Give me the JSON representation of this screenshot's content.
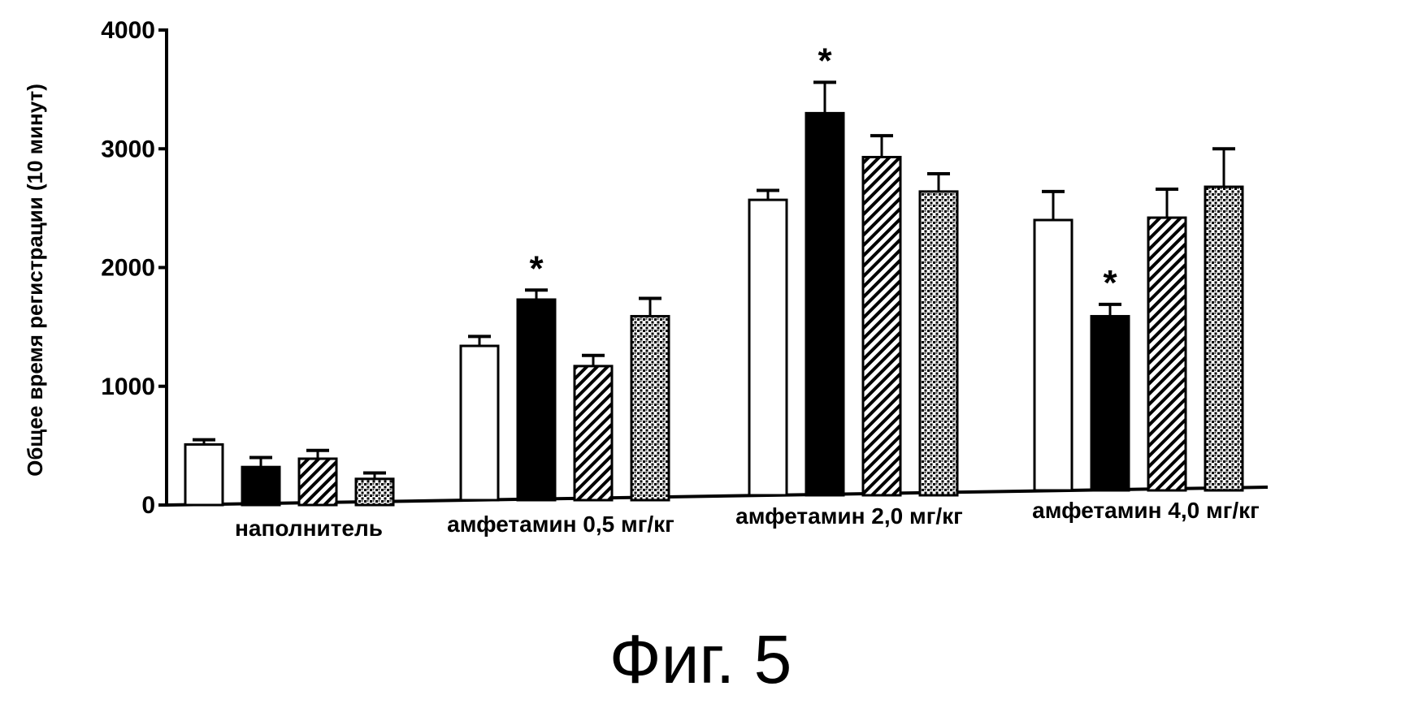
{
  "figure_caption": "Фиг. 5",
  "chart_data": {
    "type": "bar",
    "ylabel": "Общее время регистрации (10 минут)",
    "xlabel": "",
    "ylim": [
      0,
      4000
    ],
    "yticks": [
      "0",
      "1000",
      "2000",
      "3000",
      "4000"
    ],
    "ytick_values": [
      0,
      1000,
      2000,
      3000,
      4000
    ],
    "categories": [
      "наполнитель",
      "амфетамин 0,5 мг/кг",
      "амфетамин 2,0 мг/кг",
      "амфетамин 4,0 мг/кг"
    ],
    "legend": "none",
    "grid": false,
    "series": [
      {
        "fill": "white",
        "values": [
          510,
          1340,
          2570,
          2400
        ],
        "errors": [
          40,
          80,
          80,
          240
        ],
        "significant": [
          false,
          false,
          false,
          false
        ]
      },
      {
        "fill": "black",
        "values": [
          320,
          1730,
          3300,
          1590
        ],
        "errors": [
          80,
          80,
          260,
          100
        ],
        "significant": [
          false,
          true,
          true,
          true
        ]
      },
      {
        "fill": "diagonal",
        "values": [
          390,
          1170,
          2930,
          2420
        ],
        "errors": [
          70,
          90,
          180,
          240
        ],
        "significant": [
          false,
          false,
          false,
          false
        ]
      },
      {
        "fill": "crosshatch",
        "values": [
          220,
          1590,
          2640,
          2680
        ],
        "errors": [
          50,
          150,
          150,
          320
        ],
        "significant": [
          false,
          false,
          false,
          false
        ]
      }
    ],
    "significance_symbol": "*"
  }
}
